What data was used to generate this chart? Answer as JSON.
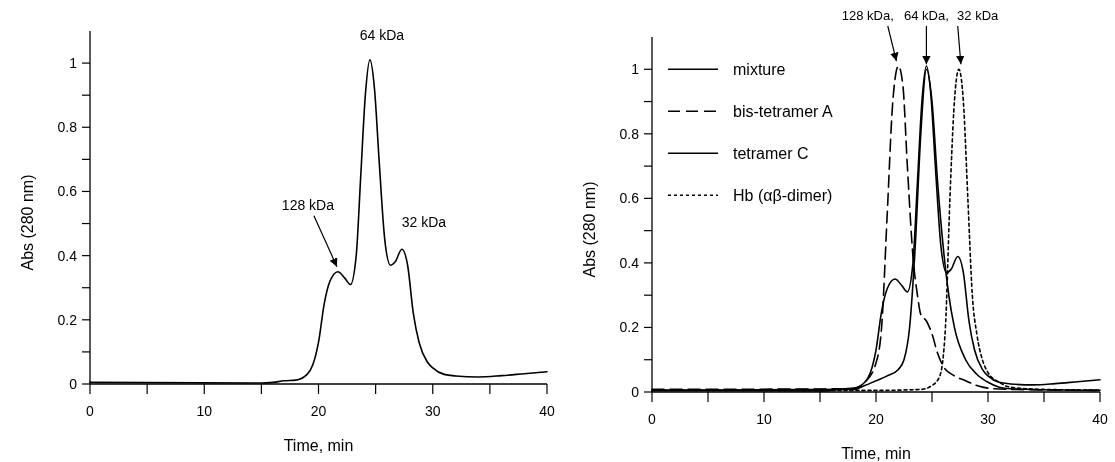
{
  "chart_data": [
    {
      "type": "line",
      "xlabel": "Time, min",
      "ylabel": "Abs (280 nm)",
      "xlim": [
        0,
        40
      ],
      "ylim": [
        0,
        1.1
      ],
      "xticks": [
        0,
        {
          "value": 5,
          "label": null
        },
        10,
        {
          "value": 15,
          "label": null
        },
        20,
        {
          "value": 25,
          "label": null
        },
        30,
        {
          "value": 35,
          "label": null
        },
        40
      ],
      "yticks": [
        0,
        {
          "value": 0.1,
          "label": null
        },
        0.2,
        {
          "value": 0.3,
          "label": null
        },
        0.4,
        {
          "value": 0.5,
          "label": null
        },
        0.6,
        {
          "value": 0.7,
          "label": null
        },
        0.8,
        {
          "value": 0.9,
          "label": null
        },
        1
      ],
      "legend": false,
      "marker": "none",
      "series": [
        {
          "color": "#000000",
          "line_style": "solid",
          "x": [
            0,
            15,
            16,
            17,
            18,
            19,
            19.5,
            20,
            20.5,
            21,
            21.7,
            22.3,
            22.8,
            23.3,
            23.7,
            24.1,
            24.5,
            24.9,
            25.3,
            25.8,
            26.3,
            26.7,
            27.3,
            27.8,
            28.3,
            28.8,
            29.5,
            30,
            31,
            32,
            34,
            36,
            38,
            40
          ],
          "values": [
            0.005,
            0.003,
            0.005,
            0.01,
            0.012,
            0.03,
            0.06,
            0.13,
            0.25,
            0.32,
            0.35,
            0.33,
            0.31,
            0.4,
            0.65,
            0.9,
            1.01,
            0.92,
            0.7,
            0.45,
            0.37,
            0.38,
            0.42,
            0.37,
            0.22,
            0.13,
            0.07,
            0.05,
            0.03,
            0.025,
            0.022,
            0.026,
            0.032,
            0.038
          ]
        }
      ],
      "annotations": [
        {
          "text": "128 kDa",
          "x": 21.7,
          "y": 0.35
        },
        {
          "text": "64 kDa",
          "x": 24.5,
          "y": 1.01
        },
        {
          "text": "32 kDa",
          "x": 27.3,
          "y": 0.42
        }
      ]
    },
    {
      "type": "line",
      "xlabel": "Time, min",
      "ylabel": "Abs (280 nm)",
      "xlim": [
        0,
        40
      ],
      "ylim": [
        0,
        1.1
      ],
      "xticks": [
        0,
        {
          "value": 5,
          "label": null
        },
        10,
        {
          "value": 15,
          "label": null
        },
        20,
        {
          "value": 25,
          "label": null
        },
        30,
        {
          "value": 35,
          "label": null
        },
        40
      ],
      "yticks": [
        0,
        {
          "value": 0.1,
          "label": null
        },
        0.2,
        {
          "value": 0.3,
          "label": null
        },
        0.4,
        {
          "value": 0.5,
          "label": null
        },
        0.6,
        {
          "value": 0.7,
          "label": null
        },
        0.8,
        {
          "value": 0.9,
          "label": null
        },
        1
      ],
      "legend": "top left",
      "marker": "none",
      "series": [
        {
          "name": "mixture",
          "color": "#000000",
          "line_style": "solid",
          "x": [
            0,
            15,
            16,
            17,
            18,
            19,
            19.5,
            20,
            20.5,
            21,
            21.7,
            22.3,
            22.8,
            23.3,
            23.7,
            24.1,
            24.5,
            24.9,
            25.3,
            25.8,
            26.3,
            26.7,
            27.3,
            27.8,
            28.3,
            28.8,
            29.5,
            30,
            31,
            32,
            34,
            36,
            38,
            40
          ],
          "values": [
            0.005,
            0.003,
            0.005,
            0.01,
            0.012,
            0.03,
            0.06,
            0.13,
            0.25,
            0.32,
            0.35,
            0.33,
            0.31,
            0.4,
            0.65,
            0.9,
            1.01,
            0.92,
            0.7,
            0.45,
            0.37,
            0.38,
            0.42,
            0.37,
            0.22,
            0.13,
            0.07,
            0.05,
            0.03,
            0.025,
            0.022,
            0.026,
            0.032,
            0.038
          ]
        },
        {
          "name": "bis-tetramer A",
          "color": "#000000",
          "line_style": "dashed",
          "x": [
            0,
            18,
            19,
            20,
            20.5,
            21,
            21.5,
            22,
            22.4,
            22.8,
            23.3,
            23.7,
            24,
            24.5,
            25,
            25.5,
            26,
            27,
            28,
            29,
            30,
            32,
            40
          ],
          "values": [
            0.008,
            0.01,
            0.03,
            0.09,
            0.2,
            0.55,
            0.9,
            1.01,
            0.95,
            0.7,
            0.42,
            0.3,
            0.24,
            0.22,
            0.18,
            0.12,
            0.08,
            0.05,
            0.035,
            0.02,
            0.012,
            0.008,
            0.005
          ]
        },
        {
          "name": "tetramer C",
          "color": "#000000",
          "line_style": "solid",
          "x": [
            0,
            18,
            19,
            20,
            21,
            22,
            22.5,
            23,
            23.5,
            24,
            24.5,
            25,
            25.5,
            26,
            26.5,
            27,
            28,
            29,
            30,
            31,
            32,
            40
          ],
          "values": [
            0.005,
            0.008,
            0.02,
            0.035,
            0.05,
            0.07,
            0.1,
            0.2,
            0.45,
            0.8,
            1.0,
            0.9,
            0.65,
            0.45,
            0.3,
            0.2,
            0.1,
            0.055,
            0.03,
            0.015,
            0.01,
            0.005
          ]
        },
        {
          "name": "Hb (αβ-dimer)",
          "color": "#000000",
          "line_style": "dotted",
          "x": [
            0,
            20,
            24,
            25,
            25.7,
            26.2,
            26.6,
            27,
            27.4,
            27.8,
            28.2,
            28.6,
            29,
            29.5,
            30,
            31,
            32,
            35,
            40
          ],
          "values": [
            0.005,
            0.005,
            0.008,
            0.02,
            0.05,
            0.2,
            0.6,
            0.9,
            1.0,
            0.9,
            0.6,
            0.3,
            0.18,
            0.1,
            0.06,
            0.03,
            0.015,
            0.008,
            0.006
          ]
        }
      ],
      "annotations": [
        {
          "text": "128 kDa,",
          "x": 22,
          "y": 1.01
        },
        {
          "text": "64 kDa,",
          "x": 24.5,
          "y": 1.0
        },
        {
          "text": "32 kDa",
          "x": 27.4,
          "y": 1.0
        }
      ]
    }
  ]
}
